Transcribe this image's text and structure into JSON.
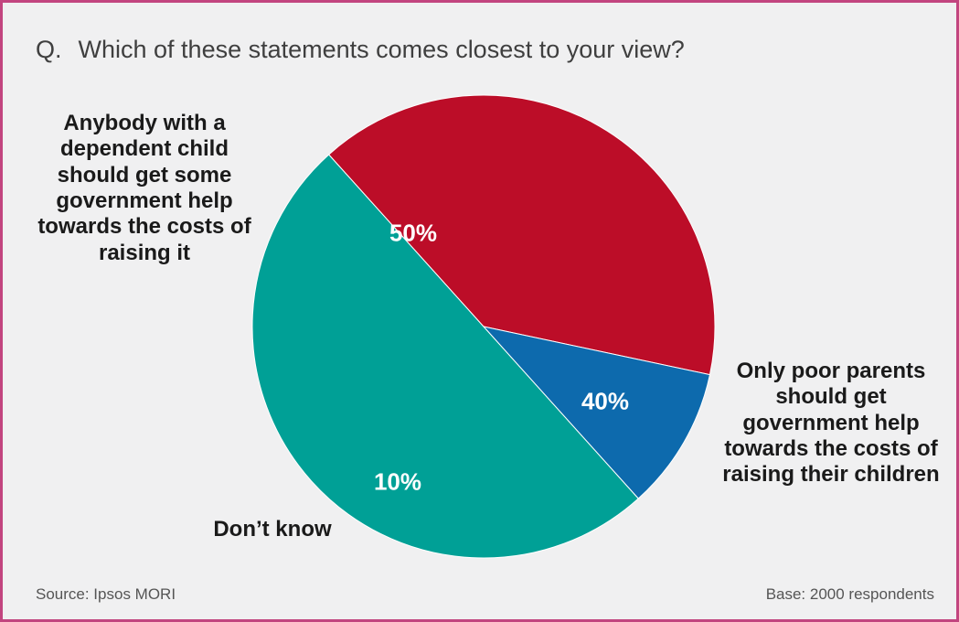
{
  "question": {
    "prefix": "Q.",
    "text": "Which of these statements comes closest to your view?"
  },
  "footer": {
    "source": "Source: Ipsos MORI",
    "base": "Base: 2000 respondents"
  },
  "colors": {
    "anybody": "#00a096",
    "only_poor": "#bc0d28",
    "dont_know": "#0d6aad",
    "border": "#c2457f"
  },
  "chart_data": {
    "type": "pie",
    "slices": [
      {
        "label": "Anybody with a dependent child should get some government help towards the costs of raising it",
        "value": 50,
        "display": "50%"
      },
      {
        "label": "Only poor parents should get government help towards the costs of raising their children",
        "value": 40,
        "display": "40%"
      },
      {
        "label": "Don’t know",
        "value": 10,
        "display": "10%"
      }
    ]
  }
}
